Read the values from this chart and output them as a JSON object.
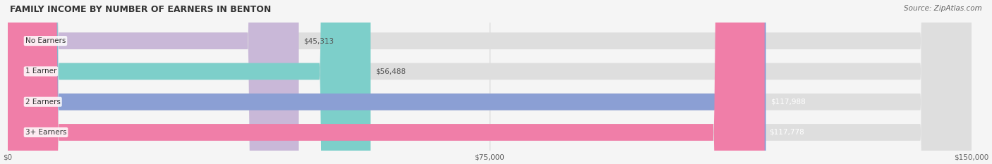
{
  "title": "FAMILY INCOME BY NUMBER OF EARNERS IN BENTON",
  "source": "Source: ZipAtlas.com",
  "categories": [
    "No Earners",
    "1 Earner",
    "2 Earners",
    "3+ Earners"
  ],
  "values": [
    45313,
    56488,
    117988,
    117778
  ],
  "bar_colors": [
    "#c9b8d8",
    "#7dcfca",
    "#8b9fd4",
    "#f07ea8"
  ],
  "bar_bg_color": "#e8e8e8",
  "label_colors": [
    "#555555",
    "#555555",
    "#ffffff",
    "#ffffff"
  ],
  "value_labels": [
    "$45,313",
    "$56,488",
    "$117,988",
    "$117,778"
  ],
  "xlim": [
    0,
    150000
  ],
  "xticks": [
    0,
    75000,
    150000
  ],
  "xtick_labels": [
    "$0",
    "$75,000",
    "$150,000"
  ],
  "figsize": [
    14.06,
    2.33
  ],
  "dpi": 100,
  "background_color": "#f5f5f5",
  "title_fontsize": 9,
  "source_fontsize": 7.5,
  "bar_label_fontsize": 7.5,
  "value_fontsize": 7.5,
  "tick_fontsize": 7.5
}
